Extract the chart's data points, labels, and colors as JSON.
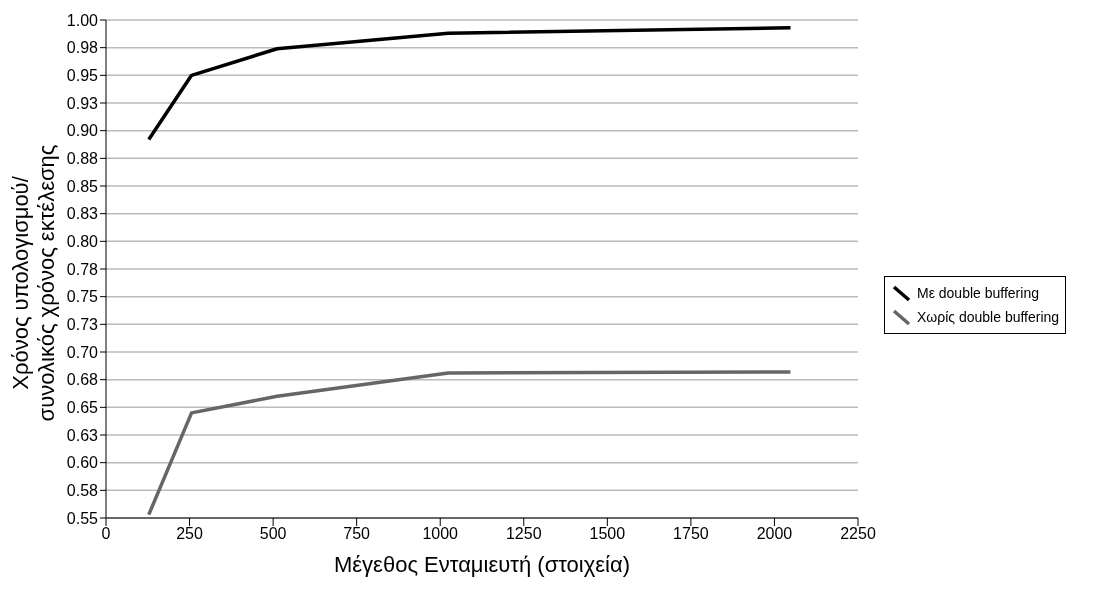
{
  "chart_data": {
    "type": "line",
    "xlabel": "Μέγεθος Ενταμιευτή (στοιχεία)",
    "ylabel": "Χρόνος υπολογισμού/ συνολικός χρόνος εκτέλεσης",
    "x": [
      128,
      256,
      512,
      1024,
      2048
    ],
    "series": [
      {
        "name": "Με double buffering",
        "color": "#000000",
        "values": [
          0.892,
          0.95,
          0.974,
          0.988,
          0.993
        ]
      },
      {
        "name": "Χωρίς double buffering",
        "color": "#666666",
        "values": [
          0.553,
          0.645,
          0.66,
          0.681,
          0.682
        ]
      }
    ],
    "xlim": [
      0,
      2250
    ],
    "xticks": [
      0,
      250,
      500,
      750,
      1000,
      1250,
      1500,
      1750,
      2000,
      2250
    ],
    "ylim": [
      0.55,
      1
    ],
    "yticks": [
      {
        "value": 0.55,
        "label": "0.55"
      },
      {
        "value": 0.575,
        "label": "0.58"
      },
      {
        "value": 0.6,
        "label": "0.60"
      },
      {
        "value": 0.625,
        "label": "0.63"
      },
      {
        "value": 0.65,
        "label": "0.65"
      },
      {
        "value": 0.675,
        "label": "0.68"
      },
      {
        "value": 0.7,
        "label": "0.70"
      },
      {
        "value": 0.725,
        "label": "0.73"
      },
      {
        "value": 0.75,
        "label": "0.75"
      },
      {
        "value": 0.775,
        "label": "0.78"
      },
      {
        "value": 0.8,
        "label": "0.80"
      },
      {
        "value": 0.825,
        "label": "0.83"
      },
      {
        "value": 0.85,
        "label": "0.85"
      },
      {
        "value": 0.875,
        "label": "0.88"
      },
      {
        "value": 0.9,
        "label": "0.90"
      },
      {
        "value": 0.925,
        "label": "0.93"
      },
      {
        "value": 0.95,
        "label": "0.95"
      },
      {
        "value": 0.975,
        "label": "0.98"
      },
      {
        "value": 1,
        "label": "1.00"
      }
    ],
    "grid": "y",
    "legend": "right",
    "marker": "none",
    "line_style": "solid"
  }
}
